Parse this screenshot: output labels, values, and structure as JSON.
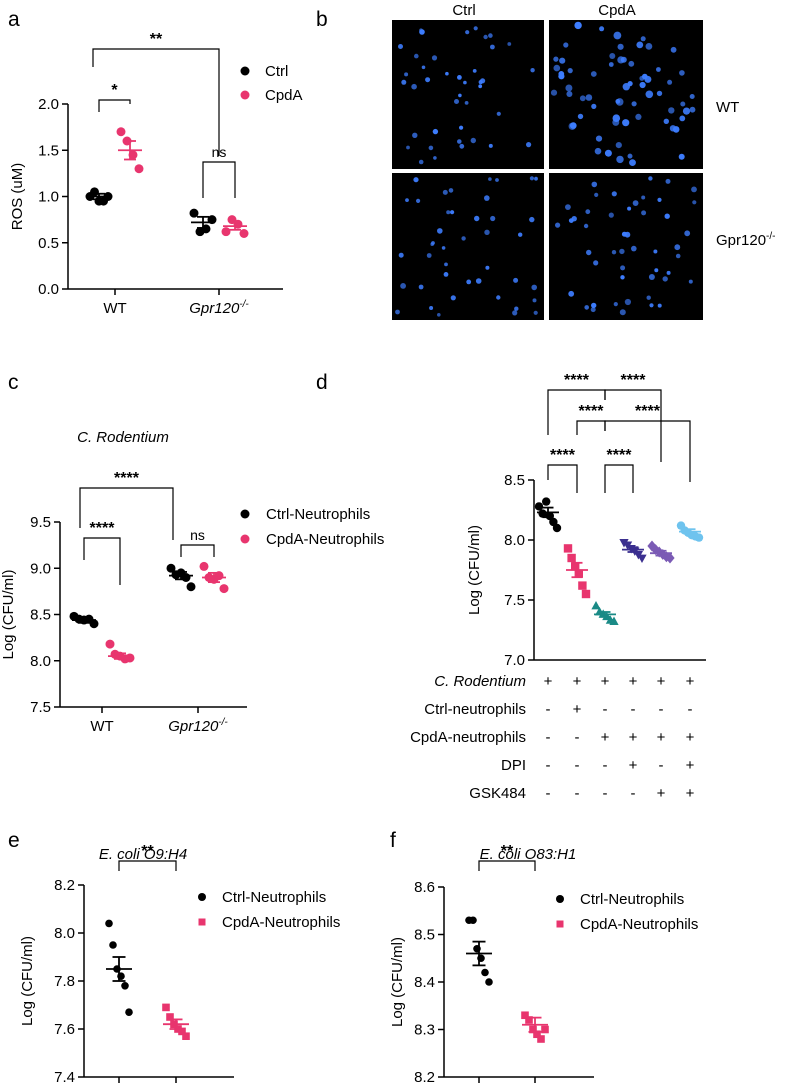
{
  "panels": {
    "a": "a",
    "b": "b",
    "c": "c",
    "d": "d",
    "e": "e",
    "f": "f"
  },
  "colors": {
    "ctrl": "#000000",
    "cpda": "#e8356e",
    "teal": "#1a8a86",
    "navy": "#3b2f8f",
    "purple": "#7b5bb5",
    "lightblue": "#6ec3ee"
  },
  "micrograph": {
    "col_labels": [
      "Ctrl",
      "CpdA"
    ],
    "row_labels": [
      "WT",
      "Gpr120"
    ],
    "row_label_superscript": "-/-",
    "stain_color": "#3d7dff"
  },
  "chart_data": [
    {
      "panel": "a",
      "type": "scatter",
      "ylabel": "ROS (uM)",
      "ylim": [
        0.0,
        2.0
      ],
      "yticks": [
        "0.0",
        "0.5",
        "1.0",
        "1.5",
        "2.0"
      ],
      "groups": [
        "WT",
        "Gpr120"
      ],
      "group_superscript": "-/-",
      "legend": [
        "Ctrl",
        "CpdA"
      ],
      "points": {
        "WT": {
          "Ctrl": [
            1.0,
            1.05,
            0.95,
            0.95,
            1.0
          ],
          "CpdA": [
            1.7,
            1.6,
            1.45,
            1.3
          ]
        },
        "Gpr120": {
          "Ctrl": [
            0.82,
            0.62,
            0.65,
            0.75
          ],
          "CpdA": [
            0.62,
            0.75,
            0.7,
            0.6
          ]
        }
      },
      "means": {
        "WT": {
          "Ctrl": 1.0,
          "CpdA": 1.5
        },
        "Gpr120": {
          "Ctrl": 0.72,
          "CpdA": 0.68
        }
      },
      "sem": {
        "WT": {
          "Ctrl": 0.03,
          "CpdA": 0.1
        },
        "Gpr120": {
          "Ctrl": 0.06,
          "CpdA": 0.04
        }
      },
      "significance": [
        {
          "label": "*",
          "between": "WT Ctrl vs WT CpdA"
        },
        {
          "label": "ns",
          "between": "Gpr120 Ctrl vs Gpr120 CpdA"
        },
        {
          "label": "**",
          "between": "WT vs Gpr120"
        }
      ]
    },
    {
      "panel": "c",
      "type": "scatter",
      "title": "C. Rodentium",
      "ylabel": "Log (CFU/ml)",
      "ylim": [
        7.5,
        9.5
      ],
      "yticks": [
        "7.5",
        "8.0",
        "8.5",
        "9.0",
        "9.5"
      ],
      "groups": [
        "WT",
        "Gpr120"
      ],
      "group_superscript": "-/-",
      "legend": [
        "Ctrl-Neutrophils",
        "CpdA-Neutrophils"
      ],
      "points": {
        "WT": {
          "Ctrl": [
            8.48,
            8.45,
            8.44,
            8.45,
            8.4
          ],
          "CpdA": [
            8.18,
            8.07,
            8.05,
            8.02,
            8.03
          ]
        },
        "Gpr120": {
          "Ctrl": [
            9.0,
            8.93,
            8.95,
            8.9,
            8.8
          ],
          "CpdA": [
            9.02,
            8.9,
            8.88,
            8.92,
            8.78
          ]
        }
      },
      "means": {
        "WT": {
          "Ctrl": 8.44,
          "CpdA": 8.05
        },
        "Gpr120": {
          "Ctrl": 8.92,
          "CpdA": 8.9
        }
      },
      "sem": {
        "WT": {
          "Ctrl": 0.03,
          "CpdA": 0.03
        },
        "Gpr120": {
          "Ctrl": 0.04,
          "CpdA": 0.05
        }
      },
      "significance": [
        {
          "label": "****",
          "between": "WT Ctrl vs WT CpdA"
        },
        {
          "label": "ns",
          "between": "Gpr120 Ctrl vs Gpr120 CpdA"
        },
        {
          "label": "****",
          "between": "WT vs Gpr120"
        }
      ]
    },
    {
      "panel": "d",
      "type": "scatter",
      "ylabel": "Log (CFU/ml)",
      "ylim": [
        7.0,
        8.5
      ],
      "yticks": [
        "7.0",
        "7.5",
        "8.0",
        "8.5"
      ],
      "conditions": [
        "C. Rodentium",
        "Ctrl-neutrophils",
        "CpdA-neutrophils",
        "DPI",
        "GSK484"
      ],
      "condition_matrix": [
        [
          "+",
          "+",
          "+",
          "+",
          "+",
          "+"
        ],
        [
          "-",
          "+",
          "-",
          "-",
          "-",
          "-"
        ],
        [
          "-",
          "-",
          "+",
          "+",
          "+",
          "+"
        ],
        [
          "-",
          "-",
          "-",
          "+",
          "-",
          "+"
        ],
        [
          "-",
          "-",
          "-",
          "-",
          "+",
          "+"
        ]
      ],
      "groups": [
        {
          "values": [
            8.28,
            8.22,
            8.32,
            8.2,
            8.15,
            8.1
          ],
          "mean": 8.23,
          "sem": 0.04,
          "marker": "circle",
          "color": "ctrl"
        },
        {
          "values": [
            7.93,
            7.85,
            7.78,
            7.72,
            7.62,
            7.55
          ],
          "mean": 7.75,
          "sem": 0.06,
          "marker": "square",
          "color": "cpda"
        },
        {
          "values": [
            7.45,
            7.4,
            7.38,
            7.36,
            7.33,
            7.32
          ],
          "mean": 7.38,
          "sem": 0.02,
          "marker": "triangle-up",
          "color": "teal"
        },
        {
          "values": [
            7.98,
            7.96,
            7.93,
            7.91,
            7.88,
            7.85
          ],
          "mean": 7.92,
          "sem": 0.02,
          "marker": "triangle-down",
          "color": "navy"
        },
        {
          "values": [
            7.95,
            7.92,
            7.9,
            7.88,
            7.86,
            7.85
          ],
          "mean": 7.89,
          "sem": 0.02,
          "marker": "diamond",
          "color": "purple"
        },
        {
          "values": [
            8.12,
            8.08,
            8.06,
            8.04,
            8.03,
            8.02
          ],
          "mean": 8.07,
          "sem": 0.02,
          "marker": "circle",
          "color": "lightblue"
        }
      ],
      "significance": [
        {
          "label": "****",
          "groups": [
            1,
            3
          ]
        },
        {
          "label": "****",
          "groups": [
            3,
            5
          ]
        },
        {
          "label": "****",
          "groups": [
            2,
            3
          ]
        },
        {
          "label": "****",
          "groups": [
            3,
            6
          ]
        },
        {
          "label": "****",
          "groups": [
            1,
            2
          ]
        },
        {
          "label": "****",
          "groups": [
            3,
            4
          ]
        }
      ]
    },
    {
      "panel": "e",
      "type": "scatter",
      "title": "E. coli O9:H4",
      "ylabel": "Log (CFU/ml)",
      "ylim": [
        7.4,
        8.2
      ],
      "yticks": [
        "7.4",
        "7.6",
        "7.8",
        "8.0",
        "8.2"
      ],
      "legend": [
        "Ctrl-Neutrophils",
        "CpdA-Neutrophils"
      ],
      "groups": [
        {
          "values": [
            8.04,
            7.95,
            7.85,
            7.82,
            7.78,
            7.67
          ],
          "mean": 7.85,
          "sem": 0.05,
          "marker": "circle",
          "color": "ctrl"
        },
        {
          "values": [
            7.69,
            7.65,
            7.62,
            7.6,
            7.59,
            7.57
          ],
          "mean": 7.62,
          "sem": 0.02,
          "marker": "square",
          "color": "cpda"
        }
      ],
      "significance": [
        {
          "label": "**",
          "groups": [
            1,
            2
          ]
        }
      ]
    },
    {
      "panel": "f",
      "type": "scatter",
      "title": "E. coli O83:H1",
      "ylabel": "Log (CFU/ml)",
      "ylim": [
        8.2,
        8.6
      ],
      "yticks": [
        "8.2",
        "8.3",
        "8.4",
        "8.5",
        "8.6"
      ],
      "legend": [
        "Ctrl-Neutrophils",
        "CpdA-Neutrophils"
      ],
      "groups": [
        {
          "values": [
            8.53,
            8.53,
            8.47,
            8.45,
            8.42,
            8.4
          ],
          "mean": 8.46,
          "sem": 0.025,
          "marker": "circle",
          "color": "ctrl"
        },
        {
          "values": [
            8.33,
            8.32,
            8.3,
            8.29,
            8.28,
            8.3
          ],
          "mean": 8.31,
          "sem": 0.015,
          "marker": "square",
          "color": "cpda"
        }
      ],
      "significance": [
        {
          "label": "**",
          "groups": [
            1,
            2
          ]
        }
      ]
    }
  ]
}
